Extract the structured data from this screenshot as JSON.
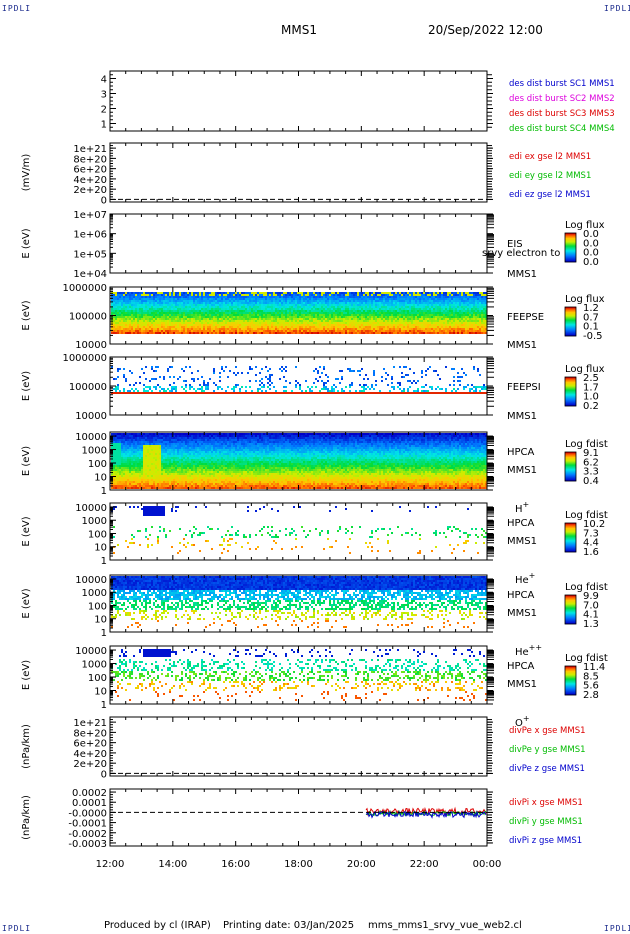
{
  "header": {
    "corner_label": "IPDLI",
    "spacecraft": "MMS1",
    "datetime": "20/Sep/2022 12:00"
  },
  "footer": {
    "produced_by": "Produced by cl (IRAP)",
    "printing_date": "Printing date: 03/Jan/2025",
    "filename": "mms_mms1_srvy_vue_web2.cl"
  },
  "x_axis": {
    "tick_labels": [
      "12:00",
      "14:00",
      "16:00",
      "18:00",
      "20:00",
      "22:00",
      "00:00"
    ],
    "hours": [
      12,
      14,
      16,
      18,
      20,
      22,
      24
    ],
    "range_hours": [
      12,
      24
    ]
  },
  "colors": {
    "frame": "#000000",
    "red": "#dd0000",
    "green": "#00bb00",
    "blue": "#0000cc",
    "magenta": "#dd00dd"
  },
  "chart_data": [
    {
      "type": "line",
      "id": "dist-burst",
      "ylabel": "",
      "ticks": [
        "1",
        "2",
        "3",
        "4"
      ],
      "tick_values": [
        1,
        2,
        3,
        4
      ],
      "ylim": [
        0.5,
        4.5
      ],
      "legend": [
        {
          "text": "des dist burst SC1 MMS1",
          "color": "#0000cc"
        },
        {
          "text": "des dist burst SC2 MMS2",
          "color": "#dd00dd"
        },
        {
          "text": "des dist burst SC3 MMS3",
          "color": "#dd0000"
        },
        {
          "text": "des dist burst SC4 MMS4",
          "color": "#00bb00"
        }
      ],
      "series": []
    },
    {
      "type": "line",
      "id": "edi-e",
      "ylabel": "(mV/m)",
      "ticks": [
        "0",
        "2e+20",
        "4e+20",
        "6e+20",
        "8e+20",
        "1e+21"
      ],
      "tick_values": [
        0,
        2e+20,
        4e+20,
        6e+20,
        8e+20,
        1e+21
      ],
      "ylim": [
        -5e+19,
        1.1e+21
      ],
      "zero_line": true,
      "legend": [
        {
          "text": "edi ex gse l2 MMS1",
          "color": "#dd0000"
        },
        {
          "text": "edi ey gse l2 MMS1",
          "color": "#00bb00"
        },
        {
          "text": "edi ez gse l2 MMS1",
          "color": "#0000cc"
        }
      ],
      "series": []
    },
    {
      "type": "heatmap",
      "id": "eis",
      "ylabel": "E (eV)",
      "ticks": [
        "1e+04",
        "1e+05",
        "1e+06",
        "1e+07"
      ],
      "tick_values": [
        4,
        5,
        6,
        7
      ],
      "ylim": [
        4,
        7
      ],
      "log_y": true,
      "instrument": [
        "EIS",
        "MMS1"
      ],
      "instrument_overlay": "srvy electron to",
      "colorbar_title": "Log flux",
      "colorbar_values": [
        "0.0",
        "0.0",
        "0.0",
        "0.0"
      ],
      "pattern": "empty"
    },
    {
      "type": "heatmap",
      "id": "feepse",
      "ylabel": "E (eV)",
      "ticks": [
        "10000",
        "100000",
        "1000000"
      ],
      "tick_values": [
        4,
        5,
        6
      ],
      "ylim": [
        4,
        6
      ],
      "log_y": true,
      "instrument": [
        "FEEPSE",
        "MMS1"
      ],
      "colorbar_title": "Log flux",
      "colorbar_values": [
        "1.2",
        "0.7",
        "0.1",
        "-0.5"
      ],
      "time_range_hours": [
        12,
        24
      ],
      "energy_range_log": [
        4.4,
        5.85
      ],
      "pattern": "feeps_e"
    },
    {
      "type": "heatmap",
      "id": "feepsi",
      "ylabel": "E (eV)",
      "ticks": [
        "10000",
        "100000",
        "1000000"
      ],
      "tick_values": [
        4,
        5,
        6
      ],
      "ylim": [
        4,
        6
      ],
      "log_y": true,
      "instrument": [
        "FEEPSI",
        "MMS1"
      ],
      "colorbar_title": "Log flux",
      "colorbar_values": [
        "2.5",
        "1.7",
        "1.0",
        "0.2"
      ],
      "time_range_hours": [
        12,
        24
      ],
      "energy_range_log": [
        4.7,
        5.7
      ],
      "pattern": "feeps_i"
    },
    {
      "type": "heatmap",
      "id": "hpca-h",
      "ylabel": "E (eV)",
      "ticks": [
        "1",
        "10",
        "100",
        "1000",
        "10000"
      ],
      "tick_values": [
        0,
        1,
        2,
        3,
        4
      ],
      "ylim": [
        0,
        4.3
      ],
      "log_y": true,
      "instrument": [
        "HPCA",
        "MMS1",
        "H+"
      ],
      "colorbar_title": "Log fdist",
      "colorbar_values": [
        "9.1",
        "6.2",
        "3.3",
        "0.4"
      ],
      "time_range_hours": [
        12,
        24
      ],
      "pattern": "hpca_h"
    },
    {
      "type": "heatmap",
      "id": "hpca-he",
      "ylabel": "E (eV)",
      "ticks": [
        "1",
        "10",
        "100",
        "1000",
        "10000"
      ],
      "tick_values": [
        0,
        1,
        2,
        3,
        4
      ],
      "ylim": [
        0,
        4.3
      ],
      "log_y": true,
      "instrument": [
        "HPCA",
        "MMS1",
        "He+"
      ],
      "colorbar_title": "Log fdist",
      "colorbar_values": [
        "10.2",
        "7.3",
        "4.4",
        "1.6"
      ],
      "time_range_hours": [
        12,
        24
      ],
      "pattern": "hpca_sparse"
    },
    {
      "type": "heatmap",
      "id": "hpca-he2",
      "ylabel": "E (eV)",
      "ticks": [
        "1",
        "10",
        "100",
        "1000",
        "10000"
      ],
      "tick_values": [
        0,
        1,
        2,
        3,
        4
      ],
      "ylim": [
        0,
        4.3
      ],
      "log_y": true,
      "instrument": [
        "HPCA",
        "MMS1",
        "He++"
      ],
      "colorbar_title": "Log fdist",
      "colorbar_values": [
        "9.9",
        "7.0",
        "4.1",
        "1.3"
      ],
      "time_range_hours": [
        12,
        24
      ],
      "pattern": "hpca_he2"
    },
    {
      "type": "heatmap",
      "id": "hpca-o",
      "ylabel": "E (eV)",
      "ticks": [
        "1",
        "10",
        "100",
        "1000",
        "10000"
      ],
      "tick_values": [
        0,
        1,
        2,
        3,
        4
      ],
      "ylim": [
        0,
        4.3
      ],
      "log_y": true,
      "instrument": [
        "HPCA",
        "MMS1",
        "O+"
      ],
      "colorbar_title": "Log fdist",
      "colorbar_values": [
        "11.4",
        "8.5",
        "5.6",
        "2.8"
      ],
      "time_range_hours": [
        12,
        24
      ],
      "pattern": "hpca_o"
    },
    {
      "type": "line",
      "id": "divpe",
      "ylabel": "(nPa/km)",
      "ticks": [
        "0",
        "2e+20",
        "4e+20",
        "6e+20",
        "8e+20",
        "1e+21"
      ],
      "tick_values": [
        0,
        2e+20,
        4e+20,
        6e+20,
        8e+20,
        1e+21
      ],
      "ylim": [
        -5e+19,
        1.1e+21
      ],
      "zero_line": true,
      "legend": [
        {
          "text": "divPe x gse MMS1",
          "color": "#dd0000"
        },
        {
          "text": "divPe y gse MMS1",
          "color": "#00bb00"
        },
        {
          "text": "divPe z gse MMS1",
          "color": "#0000cc"
        }
      ],
      "series": []
    },
    {
      "type": "line",
      "id": "divpi",
      "ylabel": "(nPa/km)",
      "ticks": [
        "-0.0003",
        "-0.0002",
        "-0.0001",
        "-0.0000",
        "0.0001",
        "0.0002"
      ],
      "tick_values": [
        -0.0003,
        -0.0002,
        -0.0001,
        0,
        0.0001,
        0.0002
      ],
      "ylim": [
        -0.00033,
        0.00023
      ],
      "zero_line": true,
      "legend": [
        {
          "text": "divPi x gse MMS1",
          "color": "#dd0000"
        },
        {
          "text": "divPi y gse MMS1",
          "color": "#00bb00"
        },
        {
          "text": "divPi z gse MMS1",
          "color": "#0000cc"
        }
      ],
      "series": [
        {
          "name": "divPi x gse MMS1",
          "color": "#dd0000",
          "time_range_hours": [
            20.15,
            24
          ],
          "mean": 1e-05,
          "spread": 3e-05
        },
        {
          "name": "divPi y gse MMS1",
          "color": "#00bb00",
          "time_range_hours": [
            20.15,
            24
          ],
          "mean": -1e-05,
          "spread": 2e-05
        },
        {
          "name": "divPi z gse MMS1",
          "color": "#0000cc",
          "time_range_hours": [
            20.15,
            24
          ],
          "mean": -2e-05,
          "spread": 3e-05
        }
      ]
    }
  ]
}
